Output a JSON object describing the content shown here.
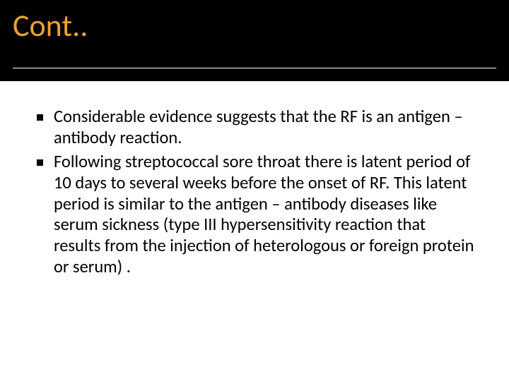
{
  "header": {
    "title": "Cont..",
    "title_color": "#f0a030",
    "title_fontsize": 44,
    "background_color": "#000000",
    "divider_color": "#ffffff"
  },
  "content": {
    "background_color": "#ffffff",
    "text_color": "#000000",
    "body_fontsize": 24.5,
    "bullet_color": "#000000",
    "bullets": [
      "Considerable evidence suggests that the RF is an antigen – antibody reaction.",
      "Following streptococcal sore throat there is latent period of 10 days to several weeks before the onset of RF. This latent period is similar to the antigen – antibody diseases like serum sickness (type III hypersensitivity reaction that results from the injection of heterologous or foreign protein or serum) ."
    ]
  }
}
